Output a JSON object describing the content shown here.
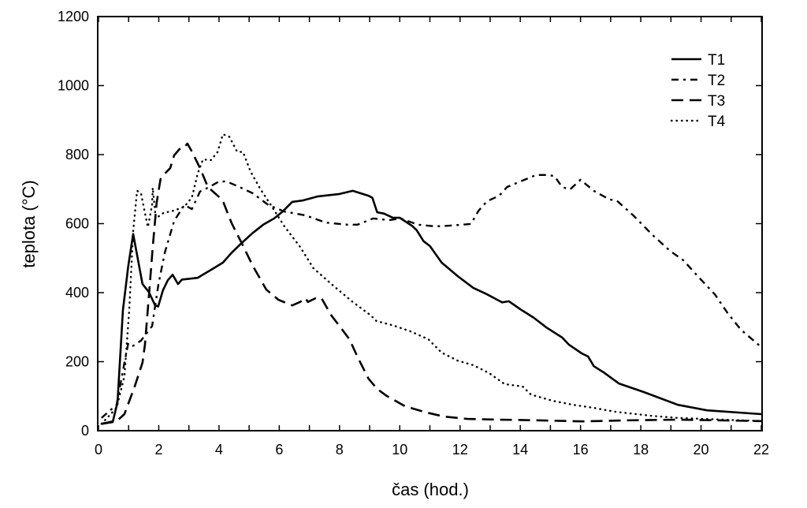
{
  "chart_data": {
    "type": "line",
    "title": "",
    "xlabel": "čas (hod.)",
    "ylabel": "teplota (°C)",
    "xlim": [
      0,
      22
    ],
    "ylim": [
      0,
      1200
    ],
    "xticks": [
      0,
      2,
      4,
      6,
      8,
      10,
      12,
      14,
      16,
      18,
      20,
      22
    ],
    "yticks": [
      0,
      200,
      400,
      600,
      800,
      1000,
      1200
    ],
    "grid": false,
    "legend_position": "top-right",
    "series": [
      {
        "name": "T1",
        "style": "solid",
        "x": [
          0.1,
          0.47,
          0.63,
          0.81,
          0.99,
          1.15,
          1.46,
          1.67,
          1.88,
          1.98,
          2.14,
          2.3,
          2.46,
          2.64,
          2.77,
          3.29,
          3.81,
          4.13,
          4.42,
          4.78,
          5.12,
          5.47,
          5.83,
          6.11,
          6.43,
          6.77,
          7.29,
          8.0,
          8.44,
          8.96,
          9.09,
          9.25,
          9.48,
          9.77,
          10.0,
          10.4,
          10.56,
          10.79,
          11.0,
          11.39,
          11.92,
          12.44,
          12.88,
          13.4,
          13.62,
          14.0,
          14.45,
          14.87,
          15.39,
          15.62,
          16.04,
          16.25,
          16.44,
          16.8,
          17.27,
          18.1,
          19.23,
          20.2,
          22.0
        ],
        "y": [
          20,
          25,
          82,
          350,
          478,
          570,
          425,
          402,
          363,
          360,
          407,
          436,
          452,
          425,
          438,
          443,
          470,
          487,
          516,
          546,
          573,
          597,
          615,
          635,
          663,
          667,
          679,
          686,
          695,
          681,
          675,
          633,
          629,
          617,
          617,
          594,
          581,
          549,
          535,
          487,
          448,
          414,
          396,
          372,
          375,
          352,
          327,
          299,
          270,
          249,
          224,
          215,
          187,
          167,
          137,
          112,
          75,
          59,
          48
        ]
      },
      {
        "name": "T2",
        "style": "dash-dot",
        "x": [
          0.1,
          0.6,
          0.86,
          0.99,
          1.15,
          1.41,
          1.54,
          1.78,
          1.99,
          2.2,
          2.51,
          2.85,
          3.1,
          3.37,
          3.63,
          4.0,
          4.26,
          4.68,
          5.12,
          5.64,
          6.17,
          6.87,
          7.55,
          8.26,
          8.6,
          9.12,
          9.64,
          10.03,
          10.6,
          11.2,
          11.65,
          12.36,
          12.62,
          12.9,
          13.3,
          13.56,
          14.0,
          14.53,
          14.87,
          15.13,
          15.39,
          15.65,
          16.0,
          16.44,
          16.96,
          17.2,
          17.75,
          18.37,
          18.97,
          19.41,
          19.94,
          20.46,
          20.88,
          21.32,
          22.0
        ],
        "y": [
          37,
          75,
          197,
          254,
          246,
          261,
          276,
          303,
          425,
          516,
          608,
          654,
          642,
          693,
          704,
          722,
          722,
          706,
          688,
          654,
          635,
          624,
          603,
          597,
          597,
          615,
          610,
          615,
          597,
          592,
          594,
          599,
          638,
          665,
          681,
          706,
          722,
          741,
          741,
          738,
          706,
          699,
          727,
          695,
          670,
          667,
          624,
          569,
          521,
          494,
          443,
          395,
          341,
          293,
          242
        ]
      },
      {
        "name": "T3",
        "style": "dashed",
        "x": [
          0.1,
          0.63,
          0.86,
          1.2,
          1.46,
          1.54,
          1.67,
          1.8,
          1.93,
          2.06,
          2.2,
          2.38,
          2.51,
          2.69,
          2.82,
          2.95,
          3.1,
          3.37,
          3.63,
          4.02,
          4.15,
          4.42,
          4.78,
          5.12,
          5.57,
          5.98,
          6.43,
          6.69,
          6.87,
          6.95,
          7.21,
          7.4,
          7.73,
          8.07,
          8.33,
          8.6,
          8.96,
          9.25,
          9.56,
          10.17,
          10.87,
          11.47,
          12.25,
          13.3,
          14.0,
          16.1,
          17.5,
          19.23,
          22.0
        ],
        "y": [
          20,
          30,
          48,
          128,
          197,
          249,
          386,
          532,
          661,
          729,
          745,
          761,
          798,
          816,
          818,
          832,
          809,
          761,
          706,
          676,
          661,
          601,
          539,
          478,
          409,
          379,
          363,
          373,
          384,
          373,
          384,
          384,
          334,
          295,
          265,
          213,
          151,
          121,
          101,
          71,
          53,
          41,
          34,
          32,
          31,
          27,
          30,
          32,
          28
        ]
      },
      {
        "name": "T4",
        "style": "dotted",
        "x": [
          0.1,
          0.6,
          0.86,
          1.02,
          1.15,
          1.28,
          1.41,
          1.54,
          1.64,
          1.78,
          1.8,
          1.9,
          2.16,
          2.51,
          2.85,
          3.1,
          3.29,
          3.47,
          3.73,
          3.95,
          4.13,
          4.34,
          4.6,
          4.8,
          5.04,
          5.38,
          5.72,
          6.17,
          6.69,
          7.13,
          7.73,
          8.44,
          9.04,
          9.22,
          9.82,
          10.35,
          10.95,
          11.39,
          11.92,
          12.44,
          12.96,
          13.48,
          14.08,
          14.35,
          15.05,
          15.76,
          16.44,
          17.14,
          18.37,
          19.23,
          22.0
        ],
        "y": [
          20,
          66,
          158,
          350,
          578,
          695,
          688,
          631,
          590,
          654,
          704,
          615,
          631,
          638,
          649,
          676,
          745,
          786,
          784,
          807,
          859,
          852,
          809,
          807,
          752,
          699,
          654,
          592,
          533,
          471,
          425,
          373,
          334,
          318,
          304,
          288,
          265,
          226,
          203,
          190,
          167,
          135,
          128,
          105,
          87,
          75,
          66,
          55,
          43,
          37,
          28
        ]
      }
    ]
  }
}
